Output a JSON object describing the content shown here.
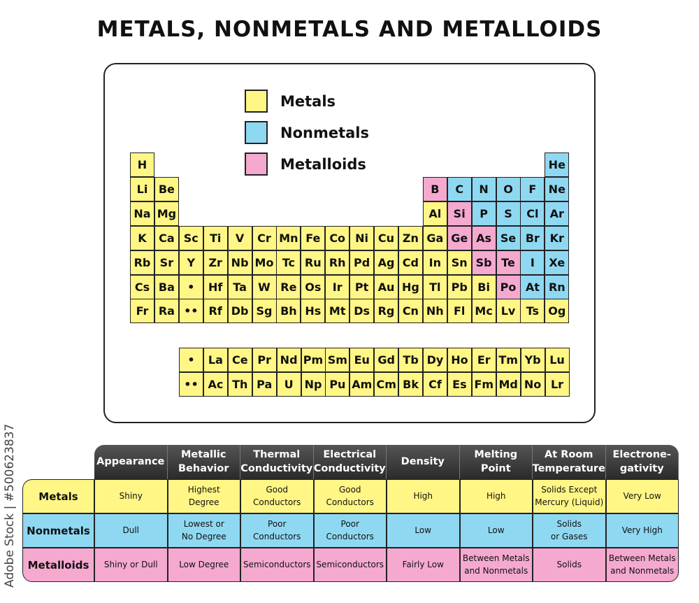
{
  "title": "METALS, NONMETALS AND METALLOIDS",
  "colors": {
    "metal": "#fff685",
    "nonmetal": "#8fd8f2",
    "metalloid": "#f5a9cf",
    "header": "#333333"
  },
  "legend": [
    {
      "label": "Metals",
      "type": "m"
    },
    {
      "label": "Nonmetals",
      "type": "n"
    },
    {
      "label": "Metalloids",
      "type": "d"
    }
  ],
  "periodic_rows": [
    [
      [
        "H",
        "m"
      ],
      null,
      null,
      null,
      null,
      null,
      null,
      null,
      null,
      null,
      null,
      null,
      null,
      null,
      null,
      null,
      null,
      [
        "He",
        "n"
      ]
    ],
    [
      [
        "Li",
        "m"
      ],
      [
        "Be",
        "m"
      ],
      null,
      null,
      null,
      null,
      null,
      null,
      null,
      null,
      null,
      null,
      [
        "B",
        "d"
      ],
      [
        "C",
        "n"
      ],
      [
        "N",
        "n"
      ],
      [
        "O",
        "n"
      ],
      [
        "F",
        "n"
      ],
      [
        "Ne",
        "n"
      ]
    ],
    [
      [
        "Na",
        "m"
      ],
      [
        "Mg",
        "m"
      ],
      null,
      null,
      null,
      null,
      null,
      null,
      null,
      null,
      null,
      null,
      [
        "Al",
        "m"
      ],
      [
        "Si",
        "d"
      ],
      [
        "P",
        "n"
      ],
      [
        "S",
        "n"
      ],
      [
        "Cl",
        "n"
      ],
      [
        "Ar",
        "n"
      ]
    ],
    [
      [
        "K",
        "m"
      ],
      [
        "Ca",
        "m"
      ],
      [
        "Sc",
        "m"
      ],
      [
        "Ti",
        "m"
      ],
      [
        "V",
        "m"
      ],
      [
        "Cr",
        "m"
      ],
      [
        "Mn",
        "m"
      ],
      [
        "Fe",
        "m"
      ],
      [
        "Co",
        "m"
      ],
      [
        "Ni",
        "m"
      ],
      [
        "Cu",
        "m"
      ],
      [
        "Zn",
        "m"
      ],
      [
        "Ga",
        "m"
      ],
      [
        "Ge",
        "d"
      ],
      [
        "As",
        "d"
      ],
      [
        "Se",
        "n"
      ],
      [
        "Br",
        "n"
      ],
      [
        "Kr",
        "n"
      ]
    ],
    [
      [
        "Rb",
        "m"
      ],
      [
        "Sr",
        "m"
      ],
      [
        "Y",
        "m"
      ],
      [
        "Zr",
        "m"
      ],
      [
        "Nb",
        "m"
      ],
      [
        "Mo",
        "m"
      ],
      [
        "Tc",
        "m"
      ],
      [
        "Ru",
        "m"
      ],
      [
        "Rh",
        "m"
      ],
      [
        "Pd",
        "m"
      ],
      [
        "Ag",
        "m"
      ],
      [
        "Cd",
        "m"
      ],
      [
        "In",
        "m"
      ],
      [
        "Sn",
        "m"
      ],
      [
        "Sb",
        "d"
      ],
      [
        "Te",
        "d"
      ],
      [
        "I",
        "n"
      ],
      [
        "Xe",
        "n"
      ]
    ],
    [
      [
        "Cs",
        "m"
      ],
      [
        "Ba",
        "m"
      ],
      [
        "•",
        "m"
      ],
      [
        "Hf",
        "m"
      ],
      [
        "Ta",
        "m"
      ],
      [
        "W",
        "m"
      ],
      [
        "Re",
        "m"
      ],
      [
        "Os",
        "m"
      ],
      [
        "Ir",
        "m"
      ],
      [
        "Pt",
        "m"
      ],
      [
        "Au",
        "m"
      ],
      [
        "Hg",
        "m"
      ],
      [
        "Tl",
        "m"
      ],
      [
        "Pb",
        "m"
      ],
      [
        "Bi",
        "m"
      ],
      [
        "Po",
        "d"
      ],
      [
        "At",
        "n"
      ],
      [
        "Rn",
        "n"
      ]
    ],
    [
      [
        "Fr",
        "m"
      ],
      [
        "Ra",
        "m"
      ],
      [
        "••",
        "m"
      ],
      [
        "Rf",
        "m"
      ],
      [
        "Db",
        "m"
      ],
      [
        "Sg",
        "m"
      ],
      [
        "Bh",
        "m"
      ],
      [
        "Hs",
        "m"
      ],
      [
        "Mt",
        "m"
      ],
      [
        "Ds",
        "m"
      ],
      [
        "Rg",
        "m"
      ],
      [
        "Cn",
        "m"
      ],
      [
        "Nh",
        "m"
      ],
      [
        "Fl",
        "m"
      ],
      [
        "Mc",
        "m"
      ],
      [
        "Lv",
        "m"
      ],
      [
        "Ts",
        "m"
      ],
      [
        "Og",
        "m"
      ]
    ]
  ],
  "f_block": [
    [
      "•",
      "La",
      "Ce",
      "Pr",
      "Nd",
      "Pm",
      "Sm",
      "Eu",
      "Gd",
      "Tb",
      "Dy",
      "Ho",
      "Er",
      "Tm",
      "Yb",
      "Lu"
    ],
    [
      "••",
      "Ac",
      "Th",
      "Pa",
      "U",
      "Np",
      "Pu",
      "Am",
      "Cm",
      "Bk",
      "Cf",
      "Es",
      "Fm",
      "Md",
      "No",
      "Lr"
    ]
  ],
  "table": {
    "headers": [
      "Appearance",
      "Metallic\nBehavior",
      "Thermal\nConductivity",
      "Electrical\nConductivity",
      "Density",
      "Melting\nPoint",
      "At Room\nTemperature",
      "Electrone-\ngativity"
    ],
    "rows": [
      {
        "label": "Metals",
        "type": "m",
        "cells": [
          "Shiny",
          "Highest\nDegree",
          "Good\nConductors",
          "Good\nConductors",
          "High",
          "High",
          "Solids Except\nMercury (Liquid)",
          "Very Low"
        ]
      },
      {
        "label": "Nonmetals",
        "type": "n",
        "cells": [
          "Dull",
          "Lowest or\nNo Degree",
          "Poor\nConductors",
          "Poor\nConductors",
          "Low",
          "Low",
          "Solids\nor Gases",
          "Very High"
        ]
      },
      {
        "label": "Metalloids",
        "type": "d",
        "cells": [
          "Shiny or Dull",
          "Low Degree",
          "Semiconductors",
          "Semiconductors",
          "Fairly Low",
          "Between Metals\nand Nonmetals",
          "Solids",
          "Between Metals\nand Nonmetals"
        ]
      }
    ]
  },
  "watermark": "Adobe Stock | #500623837"
}
